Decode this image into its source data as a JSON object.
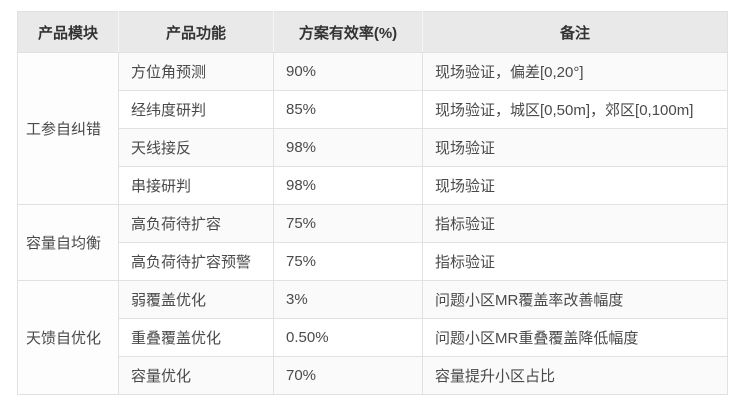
{
  "table": {
    "headers": [
      "产品模块",
      "产品功能",
      "方案有效率(%)",
      "备注"
    ],
    "groups": [
      {
        "module": "工参自纠错",
        "rows": [
          {
            "function": "方位角预测",
            "rate": "90%",
            "remark": "现场验证，偏差[0,20°]"
          },
          {
            "function": "经纬度研判",
            "rate": "85%",
            "remark": "现场验证，城区[0,50m]，郊区[0,100m]"
          },
          {
            "function": "天线接反",
            "rate": "98%",
            "remark": "现场验证"
          },
          {
            "function": "串接研判",
            "rate": "98%",
            "remark": "现场验证"
          }
        ]
      },
      {
        "module": "容量自均衡",
        "rows": [
          {
            "function": "高负荷待扩容",
            "rate": "75%",
            "remark": "指标验证"
          },
          {
            "function": "高负荷待扩容预警",
            "rate": "75%",
            "remark": "指标验证"
          }
        ]
      },
      {
        "module": "天馈自优化",
        "rows": [
          {
            "function": "弱覆盖优化",
            "rate": "3%",
            "remark": "问题小区MR覆盖率改善幅度"
          },
          {
            "function": "重叠覆盖优化",
            "rate": "0.50%",
            "remark": "问题小区MR重叠覆盖降低幅度"
          },
          {
            "function": "容量优化",
            "rate": "70%",
            "remark": "容量提升小区占比"
          }
        ]
      }
    ],
    "colors": {
      "header_bg": "#e9e9e9",
      "header_text": "#333333",
      "body_text": "#4a4a4a",
      "border": "#e1e1e1",
      "stripe": "#fafafa"
    }
  }
}
